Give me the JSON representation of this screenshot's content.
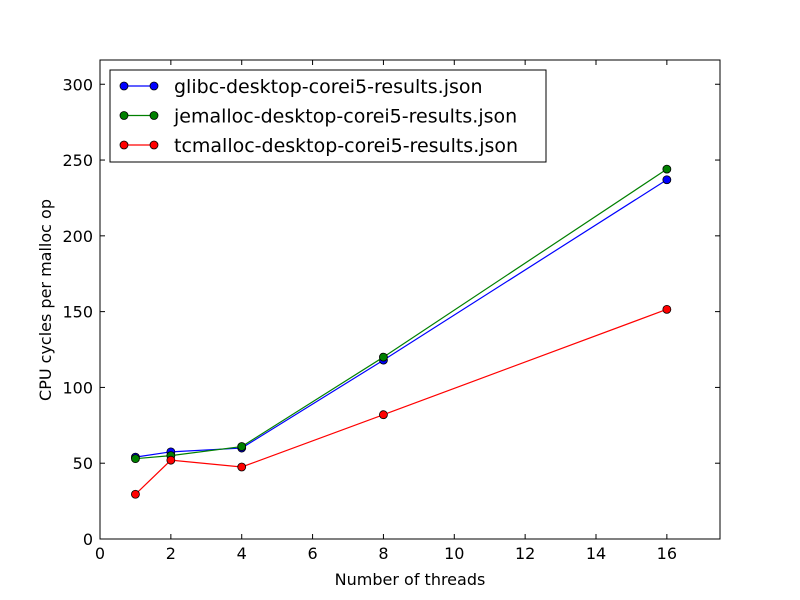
{
  "chart_data": {
    "type": "line",
    "title": "",
    "xlabel": "Number of threads",
    "ylabel": "CPU cycles per malloc op",
    "xlim": [
      0,
      17.5
    ],
    "ylim": [
      0,
      316
    ],
    "xticks": [
      0,
      2,
      4,
      6,
      8,
      10,
      12,
      14,
      16
    ],
    "yticks": [
      0,
      50,
      100,
      150,
      200,
      250,
      300
    ],
    "grid": false,
    "legend": "top-left",
    "x": [
      1,
      2,
      4,
      8,
      16
    ],
    "series": [
      {
        "name": "glibc-desktop-corei5-results.json",
        "color": "#0000ff",
        "values": [
          54,
          57.5,
          60,
          118,
          237
        ]
      },
      {
        "name": "jemalloc-desktop-corei5-results.json",
        "color": "#008000",
        "values": [
          53,
          55,
          61,
          120,
          244
        ]
      },
      {
        "name": "tcmalloc-desktop-corei5-results.json",
        "color": "#ff0000",
        "values": [
          29.5,
          52,
          47.5,
          82,
          151.5
        ]
      }
    ]
  }
}
